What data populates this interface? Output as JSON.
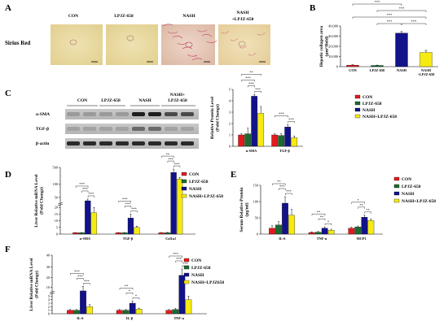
{
  "colors": {
    "con": "#e5191c",
    "lpjz": "#1d6a2f",
    "nash": "#12128a",
    "nash_lpjz": "#f5ea12",
    "err": "#000000"
  },
  "panel_letters": [
    "A",
    "B",
    "C",
    "D",
    "E",
    "F"
  ],
  "panelA": {
    "row_label": "Sirius Red",
    "columns": [
      "CON",
      "LPJZ-658",
      "NASH",
      "NASH\n+LPJZ-658"
    ]
  },
  "panelC": {
    "blot_headers": [
      "CON",
      "LPJZ-658",
      "NASH",
      "NASH+\nLPJZ-658"
    ],
    "blot_rows": [
      "α-SMA",
      "TGF-β",
      "β-actin"
    ]
  },
  "chart_data": [
    {
      "id": "B",
      "type": "bar",
      "ylabel": "Hepatic collagen area\n(μm²/field)",
      "ylim": [
        0,
        40000
      ],
      "yticks": [
        "0",
        "10,000",
        "20,000",
        "30,000",
        "40,000"
      ],
      "categories": [
        "CON",
        "LPJZ-658",
        "NASH",
        "NASH\n+LPJZ-658"
      ],
      "values": [
        1500,
        1200,
        33000,
        14000
      ],
      "errors": [
        300,
        300,
        1500,
        2000
      ],
      "significance": [
        "***",
        "***",
        "***",
        "***",
        "***",
        "***"
      ]
    },
    {
      "id": "C",
      "type": "bar",
      "ylabel": "Relative Protein Level\n(Fold Change)",
      "ylim": [
        0,
        5
      ],
      "yticks": [
        "0",
        "1",
        "2",
        "3",
        "4",
        "5"
      ],
      "categories": [
        "α-SMA",
        "TGF-β"
      ],
      "series": [
        {
          "name": "CON",
          "values": [
            1.0,
            1.0
          ],
          "errors": [
            0.1,
            0.1
          ]
        },
        {
          "name": "LPJZ-658",
          "values": [
            1.1,
            0.95
          ],
          "errors": [
            0.5,
            0.15
          ]
        },
        {
          "name": "NASH",
          "values": [
            4.4,
            1.7
          ],
          "errors": [
            0.15,
            0.2
          ]
        },
        {
          "name": "NASH+LPJZ-658",
          "values": [
            2.9,
            0.75
          ],
          "errors": [
            0.6,
            0.15
          ]
        }
      ],
      "significance": [
        "***",
        "***",
        "***",
        "**",
        "***",
        "***"
      ],
      "legend": [
        "CON",
        "LPJZ-658",
        "NASH",
        "NASH+LPJZ-658"
      ]
    },
    {
      "id": "D",
      "type": "bar",
      "ylabel": "Liver Relative mRNA Level\n(Fold Change)",
      "ylim": [
        0,
        500
      ],
      "yticks": [
        "0",
        "5",
        "10",
        "15",
        "20",
        "50",
        "100",
        "500"
      ],
      "categories": [
        "α-SMA",
        "TGF-β",
        "Col1a1"
      ],
      "series": [
        {
          "name": "CON",
          "values": [
            1,
            1,
            1
          ],
          "errors": [
            0.2,
            0.2,
            0.2
          ]
        },
        {
          "name": "LPJZ-658",
          "values": [
            1,
            1,
            1
          ],
          "errors": [
            0.2,
            0.2,
            0.3
          ]
        },
        {
          "name": "NASH",
          "values": [
            40,
            12,
            380
          ],
          "errors": [
            5,
            3,
            80
          ]
        },
        {
          "name": "NASH+LPJZ-658",
          "values": [
            16,
            5,
            220
          ],
          "errors": [
            4,
            1,
            40
          ]
        }
      ],
      "significance": [
        "***",
        "***",
        "***",
        "***",
        "***",
        "***",
        "***",
        "***",
        "**"
      ],
      "legend": [
        "CON",
        "LPJZ-658",
        "NASH",
        "NASH+LPJZ-658"
      ]
    },
    {
      "id": "E",
      "type": "bar",
      "ylabel": "Serum Relative Protein\n(pg/ml)",
      "ylim": [
        0,
        150
      ],
      "yticks": [
        "0",
        "50",
        "100",
        "150"
      ],
      "categories": [
        "IL-6",
        "TNF-α",
        "MCP1"
      ],
      "series": [
        {
          "name": "CON",
          "values": [
            18,
            5,
            18
          ],
          "errors": [
            8,
            2,
            3
          ]
        },
        {
          "name": "LPJZ-658",
          "values": [
            28,
            6,
            22
          ],
          "errors": [
            10,
            2,
            3
          ]
        },
        {
          "name": "NASH",
          "values": [
            95,
            18,
            52
          ],
          "errors": [
            20,
            4,
            6
          ]
        },
        {
          "name": "NASH+LPJZ-658",
          "values": [
            58,
            12,
            42
          ],
          "errors": [
            18,
            3,
            5
          ]
        }
      ],
      "significance": [
        "***",
        "***",
        "**",
        "*",
        "**",
        "**",
        "**",
        "**",
        "*"
      ],
      "legend": [
        "CON",
        "LPJZ-658",
        "NASH",
        "NASH+LPJZ-658"
      ]
    },
    {
      "id": "F",
      "type": "bar",
      "ylabel": "Liver Relative mRNA Level\n(Fold Change)",
      "ylim": [
        0,
        40
      ],
      "yticks": [
        "0",
        "1",
        "2",
        "3",
        "4",
        "5",
        "10",
        "20",
        "30",
        "40"
      ],
      "categories": [
        "IL-6",
        "IL-β",
        "TNF-α"
      ],
      "series": [
        {
          "name": "CON",
          "values": [
            1,
            1,
            1
          ],
          "errors": [
            0.2,
            0.2,
            0.2
          ]
        },
        {
          "name": "LPJZ-658",
          "values": [
            1,
            1,
            1.2
          ],
          "errors": [
            0.2,
            0.2,
            0.3
          ]
        },
        {
          "name": "NASH",
          "values": [
            8,
            3,
            22
          ],
          "errors": [
            3,
            0.6,
            6
          ]
        },
        {
          "name": "NASH+LPJZ658",
          "values": [
            2,
            1.3,
            4
          ],
          "errors": [
            0.6,
            0.3,
            1
          ]
        }
      ],
      "significance": [
        "***",
        "***",
        "***",
        "*",
        "*",
        "**",
        "***",
        "***",
        "***"
      ],
      "legend": [
        "CON",
        "LPJZ-658",
        "NASH",
        "NASH+LPJZ658"
      ]
    }
  ]
}
